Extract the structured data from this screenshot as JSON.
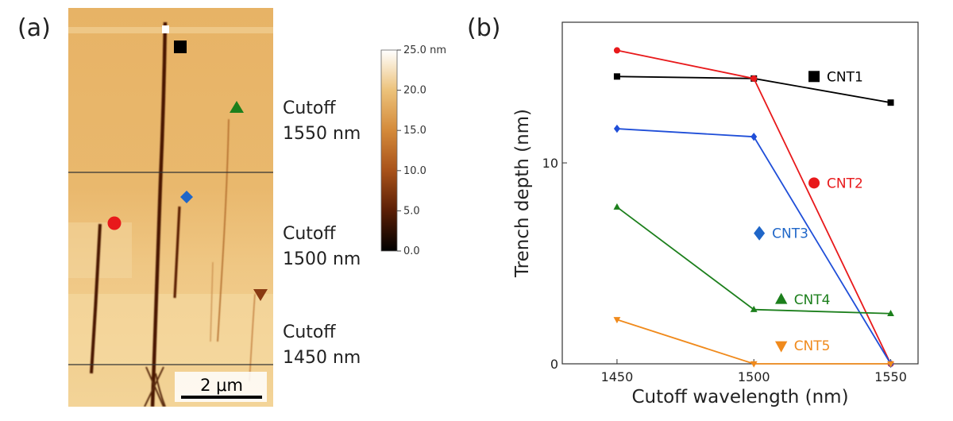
{
  "panels": {
    "a": "(a)",
    "b": "(b)"
  },
  "afm": {
    "scale_bar": "2 μm",
    "cutoff_labels": [
      {
        "line1": "Cutoff",
        "line2": "1550 nm"
      },
      {
        "line1": "Cutoff",
        "line2": "1500 nm"
      },
      {
        "line1": "Cutoff",
        "line2": "1450 nm"
      }
    ],
    "colorbar": {
      "unit": "nm",
      "ticks": [
        "25.0 nm",
        "20.0",
        "15.0",
        "10.0",
        "5.0",
        "0.0"
      ],
      "min": 0,
      "max": 25,
      "colors": [
        "#000000",
        "#5a1e06",
        "#a8521a",
        "#d48a3a",
        "#ecc27a",
        "#ffffff"
      ]
    }
  },
  "chart_data": {
    "type": "line",
    "xlabel": "Cutoff wavelength (nm)",
    "ylabel": "Trench depth (nm)",
    "x": [
      1450,
      1500,
      1550
    ],
    "xticks": [
      "1450",
      "1500",
      "1550"
    ],
    "yticks": [
      "0",
      "10"
    ],
    "xlim": [
      1430,
      1560
    ],
    "ylim": [
      0,
      17
    ],
    "grid": false,
    "series": [
      {
        "name": "CNT1",
        "color": "#000000",
        "marker": "square",
        "values": [
          14.3,
          14.2,
          13.0
        ]
      },
      {
        "name": "CNT2",
        "color": "#e8191b",
        "marker": "circle",
        "values": [
          15.6,
          14.2,
          0
        ]
      },
      {
        "name": "CNT3",
        "color": "#1f4ed8",
        "marker": "diamond",
        "values": [
          11.7,
          11.3,
          0
        ]
      },
      {
        "name": "CNT4",
        "color": "#1c7f1c",
        "marker": "triangle-up",
        "values": [
          7.8,
          2.7,
          2.5
        ]
      },
      {
        "name": "CNT5",
        "color": "#f08a1c",
        "marker": "triangle-down",
        "values": [
          2.2,
          0,
          0
        ]
      }
    ],
    "labels": [
      {
        "name": "CNT1",
        "color": "#000000",
        "text_color": "#000000",
        "marker": "square",
        "x": 1522,
        "y": 14.3
      },
      {
        "name": "CNT2",
        "color": "#e8191b",
        "text_color": "#e8191b",
        "marker": "circle",
        "x": 1522,
        "y": 9.0
      },
      {
        "name": "CNT3",
        "color": "#1f66c8",
        "text_color": "#1f66c8",
        "marker": "diamond",
        "x": 1502,
        "y": 6.5
      },
      {
        "name": "CNT4",
        "color": "#1c7f1c",
        "text_color": "#1c7f1c",
        "marker": "triangle-up",
        "x": 1510,
        "y": 3.2
      },
      {
        "name": "CNT5",
        "color": "#f08a1c",
        "text_color": "#f08a1c",
        "marker": "triangle-down",
        "x": 1510,
        "y": 0.9
      }
    ]
  }
}
